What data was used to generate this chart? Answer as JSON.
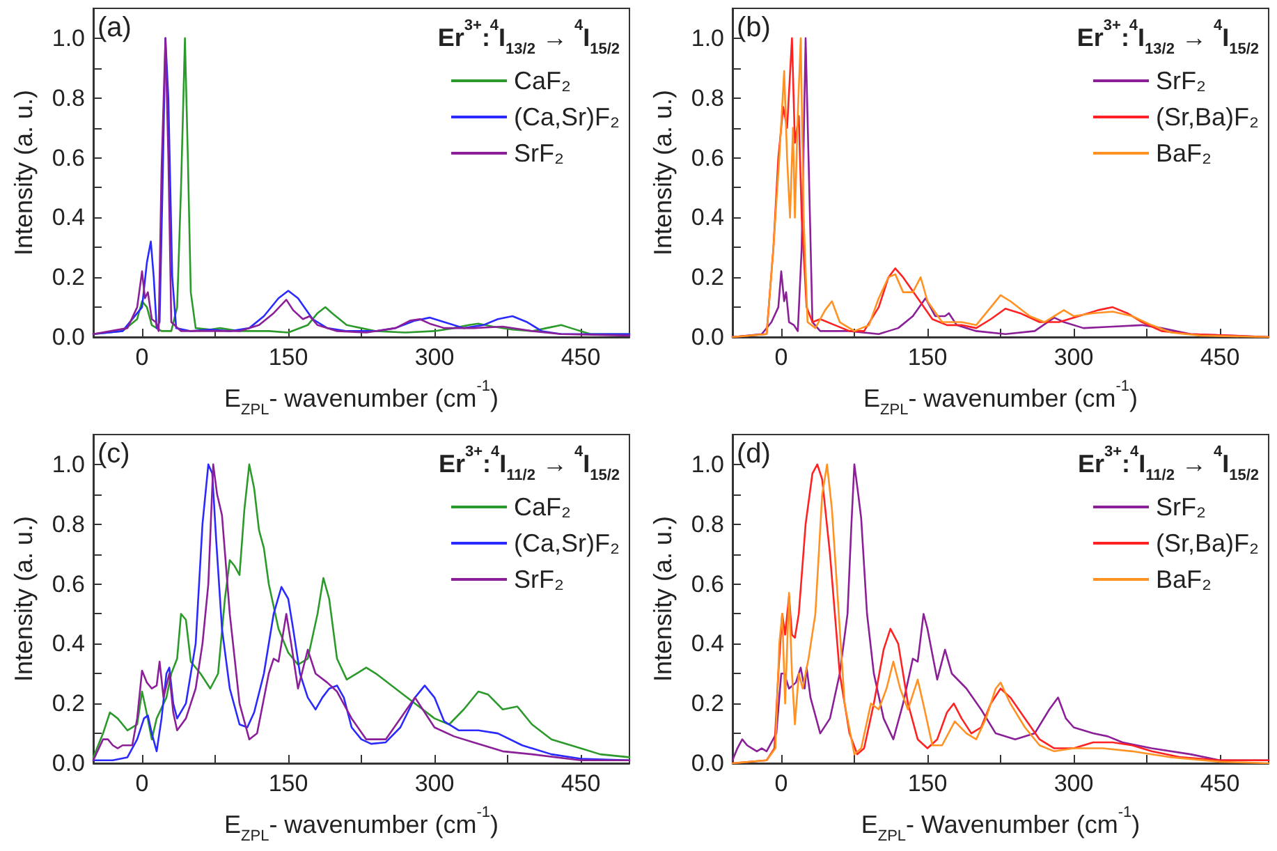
{
  "chart_data": [
    {
      "type": "line",
      "title": "Er$^{3+}$:$^{4}$I$_{13/2}$ → $^{4}$I$_{15/2}$",
      "xlabel": "E$_{ZPL}$- wavenumber (cm$^{-1}$)",
      "ylabel": "Intensity (a. u.)",
      "annotations": [
        "(a)"
      ],
      "xlim": [
        -50,
        500
      ],
      "ylim": [
        0,
        1.1
      ],
      "xticks": [
        0,
        {
          "value": 75,
          "label": null
        },
        150,
        {
          "value": 225,
          "label": null
        },
        300,
        {
          "value": 375,
          "label": null
        },
        450
      ],
      "yticks": [
        {
          "value": 0,
          "label": "0.0"
        },
        {
          "value": 0.1,
          "label": null
        },
        0.2,
        {
          "value": 0.3,
          "label": null
        },
        0.4,
        {
          "value": 0.5,
          "label": null
        },
        0.6,
        {
          "value": 0.7,
          "label": null
        },
        0.8,
        {
          "value": 0.9,
          "label": null
        },
        {
          "value": 1,
          "label": "1.0"
        }
      ],
      "legend": "top right",
      "marker": "none",
      "line_style": "solid",
      "series": [
        {
          "name": "CaF₂",
          "color": "#2b9a2b",
          "x": [
            -50,
            -20,
            -5,
            0,
            5,
            10,
            20,
            30,
            36,
            40,
            44,
            47,
            50,
            55,
            70,
            80,
            100,
            130,
            150,
            170,
            180,
            188,
            195,
            210,
            240,
            270,
            300,
            320,
            335,
            345,
            360,
            380,
            400,
            415,
            430,
            440,
            460,
            500
          ],
          "values": [
            0.01,
            0.02,
            0.06,
            0.12,
            0.1,
            0.04,
            0.02,
            0.02,
            0.1,
            0.5,
            1.0,
            0.6,
            0.15,
            0.03,
            0.025,
            0.03,
            0.02,
            0.02,
            0.015,
            0.04,
            0.08,
            0.1,
            0.08,
            0.04,
            0.02,
            0.015,
            0.02,
            0.03,
            0.04,
            0.045,
            0.035,
            0.025,
            0.02,
            0.03,
            0.04,
            0.03,
            0.01,
            0.01
          ]
        },
        {
          "name": "(Ca,Sr)F₂",
          "color": "#2a2aff",
          "x": [
            -50,
            -20,
            0,
            5,
            9,
            12,
            15,
            18,
            21,
            24,
            27,
            31,
            35,
            50,
            70,
            90,
            110,
            125,
            140,
            150,
            160,
            175,
            190,
            210,
            240,
            260,
            280,
            295,
            310,
            330,
            350,
            365,
            380,
            395,
            410,
            430,
            500
          ],
          "values": [
            0.01,
            0.02,
            0.1,
            0.25,
            0.32,
            0.2,
            0.03,
            0.05,
            0.5,
            1.0,
            0.8,
            0.2,
            0.03,
            0.02,
            0.025,
            0.02,
            0.03,
            0.07,
            0.13,
            0.155,
            0.13,
            0.06,
            0.03,
            0.02,
            0.02,
            0.03,
            0.055,
            0.065,
            0.05,
            0.03,
            0.04,
            0.06,
            0.07,
            0.05,
            0.02,
            0.01,
            0.01
          ]
        },
        {
          "name": "SrF₂",
          "color": "#8b1f98",
          "x": [
            -50,
            -15,
            -5,
            0,
            3,
            6,
            10,
            14,
            17,
            20,
            24,
            27,
            30,
            40,
            60,
            80,
            100,
            120,
            135,
            148,
            155,
            165,
            172,
            180,
            200,
            230,
            260,
            275,
            285,
            295,
            310,
            340,
            370,
            400,
            430,
            500
          ],
          "values": [
            0.01,
            0.03,
            0.1,
            0.22,
            0.13,
            0.15,
            0.06,
            0.05,
            0.02,
            0.56,
            1.0,
            0.6,
            0.05,
            0.02,
            0.02,
            0.02,
            0.02,
            0.04,
            0.08,
            0.125,
            0.09,
            0.06,
            0.07,
            0.04,
            0.02,
            0.015,
            0.03,
            0.055,
            0.06,
            0.045,
            0.03,
            0.03,
            0.035,
            0.02,
            0.01,
            0.005
          ]
        }
      ]
    },
    {
      "type": "line",
      "title": "Er$^{3+}$:$^{4}$I$_{13/2}$ → $^{4}$I$_{15/2}$",
      "xlabel": "E$_{ZPL}$- wavenumber (cm$^{-1}$)",
      "ylabel": "Intensity (a. u.)",
      "annotations": [
        "(b)"
      ],
      "xlim": [
        -50,
        500
      ],
      "ylim": [
        0,
        1.1
      ],
      "xticks": [
        0,
        {
          "value": 75,
          "label": null
        },
        150,
        {
          "value": 225,
          "label": null
        },
        300,
        {
          "value": 375,
          "label": null
        },
        450
      ],
      "yticks": [
        {
          "value": 0,
          "label": "0.0"
        },
        {
          "value": 0.1,
          "label": null
        },
        0.2,
        {
          "value": 0.3,
          "label": null
        },
        0.4,
        {
          "value": 0.5,
          "label": null
        },
        0.6,
        {
          "value": 0.7,
          "label": null
        },
        0.8,
        {
          "value": 0.9,
          "label": null
        },
        {
          "value": 1,
          "label": "1.0"
        }
      ],
      "legend": "top right",
      "marker": "none",
      "line_style": "solid",
      "series": [
        {
          "name": "SrF₂",
          "color": "#8b1f98",
          "x": [
            -50,
            -20,
            -10,
            -3,
            0,
            3,
            5,
            8,
            13,
            17,
            21,
            25,
            28,
            32,
            40,
            70,
            100,
            120,
            135,
            148,
            158,
            168,
            172,
            180,
            200,
            230,
            260,
            280,
            290,
            310,
            340,
            370,
            390,
            420,
            500
          ],
          "values": [
            0,
            0.01,
            0.05,
            0.1,
            0.22,
            0.12,
            0.15,
            0.05,
            0.04,
            0.02,
            0.3,
            1.0,
            0.6,
            0.05,
            0.02,
            0.02,
            0.01,
            0.03,
            0.07,
            0.13,
            0.07,
            0.07,
            0.08,
            0.04,
            0.02,
            0.01,
            0.02,
            0.065,
            0.05,
            0.03,
            0.035,
            0.04,
            0.03,
            0.01,
            0
          ]
        },
        {
          "name": "(Sr,Ba)F₂",
          "color": "#ff2222",
          "x": [
            -50,
            -15,
            -8,
            -3,
            2,
            6,
            11,
            14,
            18,
            21,
            26,
            32,
            40,
            55,
            70,
            85,
            100,
            110,
            117,
            125,
            140,
            155,
            170,
            185,
            200,
            215,
            230,
            245,
            265,
            285,
            305,
            325,
            340,
            355,
            370,
            390,
            420,
            500
          ],
          "values": [
            0,
            0.01,
            0.3,
            0.6,
            0.77,
            0.7,
            1.0,
            0.65,
            0.74,
            0.4,
            0.1,
            0.05,
            0.06,
            0.04,
            0.02,
            0.02,
            0.1,
            0.2,
            0.23,
            0.2,
            0.13,
            0.06,
            0.04,
            0.04,
            0.03,
            0.06,
            0.095,
            0.08,
            0.05,
            0.05,
            0.07,
            0.09,
            0.1,
            0.08,
            0.05,
            0.02,
            0.01,
            0
          ]
        },
        {
          "name": "BaF₂",
          "color": "#ff9222",
          "x": [
            -50,
            -15,
            -8,
            -2,
            3,
            6,
            9,
            12,
            14,
            17,
            20,
            23,
            27,
            35,
            45,
            52,
            60,
            75,
            90,
            100,
            110,
            117,
            125,
            135,
            143,
            150,
            165,
            185,
            200,
            215,
            225,
            235,
            255,
            270,
            290,
            300,
            320,
            340,
            360,
            380,
            400,
            430,
            500
          ],
          "values": [
            0,
            0.01,
            0.3,
            0.6,
            0.89,
            0.6,
            0.4,
            0.7,
            0.4,
            0.75,
            1.0,
            0.4,
            0.05,
            0.03,
            0.09,
            0.12,
            0.05,
            0.02,
            0.04,
            0.13,
            0.2,
            0.21,
            0.15,
            0.15,
            0.2,
            0.12,
            0.05,
            0.05,
            0.04,
            0.1,
            0.14,
            0.12,
            0.07,
            0.05,
            0.09,
            0.07,
            0.08,
            0.085,
            0.07,
            0.04,
            0.015,
            0.005,
            0
          ]
        }
      ]
    },
    {
      "type": "line",
      "title": "Er$^{3+}$:$^{4}$I$_{11/2}$ → $^{4}$I$_{15/2}$",
      "xlabel": "E$_{ZPL}$- wavenumber (cm$^{-1}$)",
      "ylabel": "Intensity (a. u.)",
      "annotations": [
        "(c)"
      ],
      "xlim": [
        -50,
        500
      ],
      "ylim": [
        0,
        1.1
      ],
      "xticks": [
        0,
        {
          "value": 75,
          "label": null
        },
        150,
        {
          "value": 225,
          "label": null
        },
        300,
        {
          "value": 375,
          "label": null
        },
        450
      ],
      "yticks": [
        {
          "value": 0,
          "label": "0.0"
        },
        {
          "value": 0.1,
          "label": null
        },
        0.2,
        {
          "value": 0.3,
          "label": null
        },
        0.4,
        {
          "value": 0.5,
          "label": null
        },
        0.6,
        {
          "value": 0.7,
          "label": null
        },
        0.8,
        {
          "value": 0.9,
          "label": null
        },
        {
          "value": 1,
          "label": "1.0"
        }
      ],
      "legend": "top right",
      "marker": "none",
      "line_style": "solid",
      "series": [
        {
          "name": "CaF₂",
          "color": "#2b9a2b",
          "x": [
            -50,
            -40,
            -33,
            -25,
            -15,
            -5,
            0,
            4,
            10,
            15,
            25,
            30,
            36,
            40,
            45,
            50,
            60,
            70,
            78,
            85,
            90,
            95,
            100,
            105,
            110,
            115,
            120,
            125,
            130,
            140,
            150,
            160,
            170,
            180,
            186,
            192,
            200,
            210,
            220,
            230,
            240,
            260,
            280,
            300,
            315,
            330,
            345,
            355,
            370,
            385,
            400,
            420,
            450,
            470,
            500
          ],
          "values": [
            0.02,
            0.1,
            0.17,
            0.15,
            0.11,
            0.13,
            0.24,
            0.18,
            0.08,
            0.15,
            0.22,
            0.3,
            0.35,
            0.5,
            0.48,
            0.34,
            0.3,
            0.25,
            0.3,
            0.55,
            0.68,
            0.66,
            0.63,
            0.85,
            1.0,
            0.92,
            0.78,
            0.72,
            0.6,
            0.45,
            0.37,
            0.33,
            0.35,
            0.5,
            0.62,
            0.55,
            0.35,
            0.28,
            0.3,
            0.32,
            0.3,
            0.25,
            0.2,
            0.15,
            0.13,
            0.18,
            0.24,
            0.23,
            0.18,
            0.19,
            0.13,
            0.08,
            0.05,
            0.03,
            0.02
          ]
        },
        {
          "name": "(Ca,Sr)F₂",
          "color": "#2a2aff",
          "x": [
            -50,
            -30,
            -15,
            -5,
            2,
            6,
            10,
            15,
            20,
            25,
            28,
            32,
            36,
            45,
            55,
            62,
            68,
            72,
            76,
            82,
            90,
            100,
            108,
            115,
            125,
            135,
            143,
            150,
            155,
            162,
            170,
            178,
            185,
            192,
            200,
            207,
            215,
            225,
            235,
            250,
            265,
            280,
            290,
            300,
            310,
            325,
            345,
            365,
            390,
            420,
            450,
            500
          ],
          "values": [
            0.01,
            0.01,
            0.02,
            0.08,
            0.15,
            0.16,
            0.1,
            0.04,
            0.15,
            0.3,
            0.32,
            0.2,
            0.15,
            0.2,
            0.4,
            0.8,
            1.0,
            0.97,
            0.75,
            0.45,
            0.25,
            0.13,
            0.12,
            0.17,
            0.3,
            0.5,
            0.59,
            0.55,
            0.45,
            0.3,
            0.22,
            0.18,
            0.22,
            0.25,
            0.26,
            0.22,
            0.12,
            0.08,
            0.065,
            0.07,
            0.12,
            0.22,
            0.26,
            0.22,
            0.14,
            0.11,
            0.11,
            0.1,
            0.06,
            0.03,
            0.015,
            0.01
          ]
        },
        {
          "name": "SrF₂",
          "color": "#8b1f98",
          "x": [
            -50,
            -40,
            -35,
            -30,
            -25,
            -20,
            -10,
            -5,
            0,
            5,
            10,
            15,
            18,
            22,
            28,
            32,
            36,
            45,
            55,
            62,
            68,
            73,
            77,
            82,
            90,
            100,
            110,
            118,
            130,
            135,
            140,
            148,
            153,
            160,
            170,
            178,
            190,
            200,
            215,
            230,
            250,
            265,
            280,
            288,
            300,
            320,
            340,
            370,
            400,
            450,
            500
          ],
          "values": [
            0.01,
            0.08,
            0.08,
            0.06,
            0.05,
            0.06,
            0.06,
            0.15,
            0.31,
            0.27,
            0.25,
            0.26,
            0.34,
            0.22,
            0.3,
            0.17,
            0.11,
            0.15,
            0.25,
            0.4,
            0.6,
            1.0,
            0.9,
            0.83,
            0.5,
            0.2,
            0.08,
            0.1,
            0.3,
            0.35,
            0.34,
            0.5,
            0.4,
            0.25,
            0.38,
            0.3,
            0.27,
            0.24,
            0.15,
            0.08,
            0.08,
            0.15,
            0.22,
            0.18,
            0.12,
            0.09,
            0.07,
            0.04,
            0.03,
            0.01,
            0.01
          ]
        }
      ]
    },
    {
      "type": "line",
      "title": "Er$^{3+}$:$^{4}$I$_{11/2}$ → $^{4}$I$_{15/2}$",
      "xlabel": "E$_{ZPL}$- Wavenumber (cm$^{-1}$)",
      "ylabel": "Intensity (a. u.)",
      "annotations": [
        "(d)"
      ],
      "xlim": [
        -50,
        500
      ],
      "ylim": [
        0,
        1.1
      ],
      "xticks": [
        0,
        {
          "value": 75,
          "label": null
        },
        150,
        {
          "value": 225,
          "label": null
        },
        300,
        {
          "value": 375,
          "label": null
        },
        450
      ],
      "yticks": [
        {
          "value": 0,
          "label": "0.0"
        },
        {
          "value": 0.1,
          "label": null
        },
        0.2,
        {
          "value": 0.3,
          "label": null
        },
        0.4,
        {
          "value": 0.5,
          "label": null
        },
        0.6,
        {
          "value": 0.7,
          "label": null
        },
        0.8,
        {
          "value": 0.9,
          "label": null
        },
        {
          "value": 1,
          "label": "1.0"
        }
      ],
      "legend": "top right",
      "marker": "none",
      "line_style": "solid",
      "series": [
        {
          "name": "SrF₂",
          "color": "#8b1f98",
          "x": [
            -50,
            -45,
            -40,
            -35,
            -30,
            -25,
            -20,
            -15,
            -10,
            -5,
            0,
            3,
            8,
            15,
            20,
            24,
            26,
            30,
            40,
            50,
            60,
            68,
            72,
            75,
            79,
            82,
            88,
            95,
            105,
            115,
            125,
            135,
            140,
            146,
            150,
            160,
            168,
            175,
            190,
            205,
            220,
            240,
            260,
            275,
            284,
            292,
            300,
            320,
            335,
            350,
            380,
            420,
            450,
            500
          ],
          "values": [
            0.01,
            0.05,
            0.08,
            0.06,
            0.05,
            0.04,
            0.05,
            0.04,
            0.07,
            0.1,
            0.3,
            0.3,
            0.25,
            0.27,
            0.32,
            0.25,
            0.32,
            0.22,
            0.1,
            0.15,
            0.3,
            0.5,
            0.8,
            1.0,
            0.9,
            0.82,
            0.5,
            0.3,
            0.15,
            0.08,
            0.2,
            0.35,
            0.34,
            0.5,
            0.45,
            0.28,
            0.38,
            0.3,
            0.25,
            0.18,
            0.1,
            0.08,
            0.1,
            0.18,
            0.22,
            0.15,
            0.12,
            0.1,
            0.09,
            0.07,
            0.05,
            0.03,
            0.01,
            0.01
          ]
        },
        {
          "name": "(Sr,Ba)F₂",
          "color": "#ff2222",
          "x": [
            -50,
            -15,
            -7,
            -3,
            1,
            4,
            8,
            11,
            14,
            18,
            25,
            32,
            37,
            42,
            50,
            60,
            70,
            78,
            85,
            95,
            105,
            112,
            120,
            130,
            140,
            150,
            160,
            170,
            177,
            185,
            195,
            205,
            215,
            225,
            235,
            250,
            265,
            280,
            300,
            320,
            340,
            360,
            380,
            410,
            450,
            500
          ],
          "values": [
            0,
            0.01,
            0.05,
            0.3,
            0.5,
            0.43,
            0.56,
            0.43,
            0.42,
            0.5,
            0.8,
            0.97,
            1.0,
            0.95,
            0.7,
            0.3,
            0.1,
            0.03,
            0.05,
            0.2,
            0.38,
            0.45,
            0.4,
            0.2,
            0.08,
            0.05,
            0.08,
            0.17,
            0.2,
            0.15,
            0.1,
            0.12,
            0.2,
            0.25,
            0.22,
            0.15,
            0.08,
            0.05,
            0.05,
            0.07,
            0.07,
            0.06,
            0.04,
            0.02,
            0.01,
            0.01
          ]
        },
        {
          "name": "BaF₂",
          "color": "#ff9222",
          "x": [
            -50,
            -15,
            -6,
            -2,
            1,
            4,
            8,
            11,
            14,
            18,
            22,
            28,
            35,
            42,
            47,
            52,
            58,
            65,
            75,
            82,
            92,
            100,
            108,
            115,
            122,
            130,
            140,
            147,
            155,
            165,
            178,
            190,
            200,
            210,
            220,
            225,
            235,
            250,
            265,
            280,
            300,
            330,
            360,
            400,
            450,
            500
          ],
          "values": [
            0,
            0.01,
            0.05,
            0.4,
            0.5,
            0.2,
            0.57,
            0.3,
            0.13,
            0.3,
            0.25,
            0.35,
            0.5,
            0.9,
            1.0,
            0.85,
            0.55,
            0.2,
            0.03,
            0.05,
            0.2,
            0.18,
            0.25,
            0.34,
            0.25,
            0.18,
            0.28,
            0.18,
            0.06,
            0.06,
            0.14,
            0.1,
            0.08,
            0.15,
            0.25,
            0.27,
            0.2,
            0.12,
            0.06,
            0.04,
            0.05,
            0.05,
            0.04,
            0.02,
            0.005,
            0
          ]
        }
      ]
    }
  ]
}
